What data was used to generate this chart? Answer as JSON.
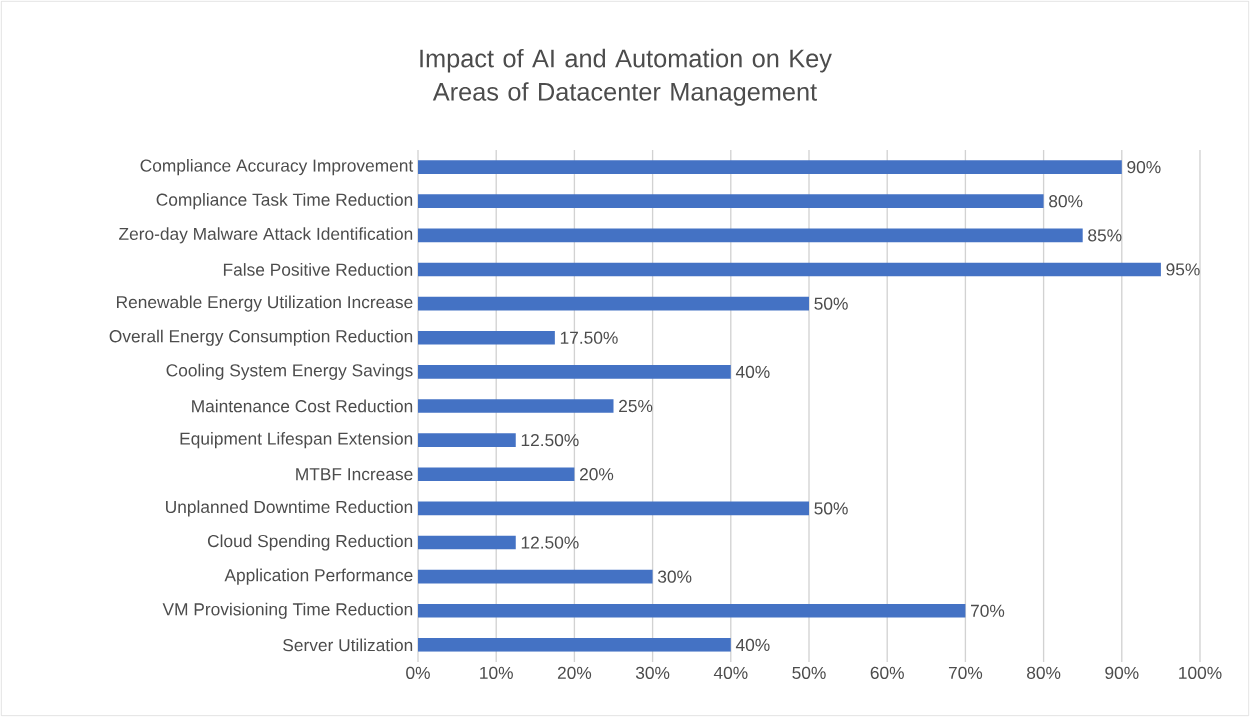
{
  "chart_data": {
    "type": "bar",
    "orientation": "horizontal",
    "title": "Impact of AI and Automation on Key Areas of Datacenter Management",
    "categories": [
      "Compliance Accuracy Improvement",
      "Compliance Task Time Reduction",
      "Zero-day Malware Attack Identification",
      "False Positive Reduction",
      "Renewable Energy Utilization Increase",
      "Overall Energy Consumption Reduction",
      "Cooling System Energy Savings",
      "Maintenance Cost Reduction",
      "Equipment Lifespan Extension",
      "MTBF Increase",
      "Unplanned Downtime Reduction",
      "Cloud Spending Reduction",
      "Application Performance",
      "VM Provisioning Time Reduction",
      "Server Utilization"
    ],
    "values": [
      90,
      80,
      85,
      95,
      50,
      17.5,
      40,
      25,
      12.5,
      20,
      50,
      12.5,
      30,
      70,
      40
    ],
    "value_labels": [
      "90%",
      "80%",
      "85%",
      "95%",
      "50%",
      "17.50%",
      "40%",
      "25%",
      "12.50%",
      "20%",
      "50%",
      "12.50%",
      "30%",
      "70%",
      "40%"
    ],
    "color": "#4472c4",
    "xlim": [
      0,
      100
    ],
    "xticks": [
      {
        "value": 0,
        "label": "0%"
      },
      {
        "value": 10,
        "label": "10%"
      },
      {
        "value": 20,
        "label": "20%"
      },
      {
        "value": 30,
        "label": "30%"
      },
      {
        "value": 40,
        "label": "40%"
      },
      {
        "value": 50,
        "label": "50%"
      },
      {
        "value": 60,
        "label": "60%"
      },
      {
        "value": 70,
        "label": "70%"
      },
      {
        "value": 80,
        "label": "80%"
      },
      {
        "value": 90,
        "label": "90%"
      },
      {
        "value": 100,
        "label": "100%"
      }
    ],
    "grid": "x"
  }
}
